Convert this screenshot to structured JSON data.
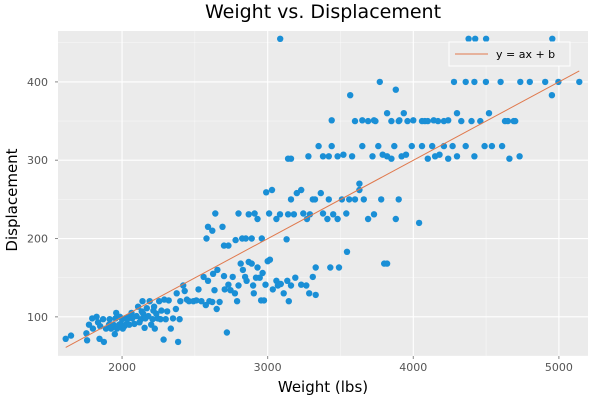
{
  "chart_data": {
    "type": "scatter",
    "title": "Weight vs. Displacement",
    "xlabel": "Weight (lbs)",
    "ylabel": "Displacement",
    "xlim": [
      1560,
      5200
    ],
    "ylim": [
      50,
      465
    ],
    "xticks": [
      2000,
      3000,
      4000,
      5000
    ],
    "yticks": [
      100,
      200,
      300,
      400
    ],
    "grid": true,
    "legend_position": "top-right",
    "colors": {
      "points": "#1a8fd6",
      "fit_line": "#e0794d",
      "panel": "#ebebeb",
      "grid": "#ffffff"
    },
    "series": [
      {
        "type": "scatter",
        "points": [
          [
            1613,
            72
          ],
          [
            1649,
            76
          ],
          [
            1755,
            79
          ],
          [
            1760,
            70
          ],
          [
            1773,
            90
          ],
          [
            1795,
            98
          ],
          [
            1800,
            85
          ],
          [
            1825,
            100
          ],
          [
            1835,
            93
          ],
          [
            1845,
            72
          ],
          [
            1850,
            88
          ],
          [
            1870,
            97
          ],
          [
            1875,
            68
          ],
          [
            1890,
            85
          ],
          [
            1910,
            90
          ],
          [
            1915,
            97
          ],
          [
            1925,
            85
          ],
          [
            1940,
            90
          ],
          [
            1950,
            78
          ],
          [
            1955,
            98
          ],
          [
            1960,
            105
          ],
          [
            1965,
            85
          ],
          [
            1980,
            90
          ],
          [
            1985,
            100
          ],
          [
            1990,
            91
          ],
          [
            2000,
            97
          ],
          [
            2005,
            85
          ],
          [
            2015,
            88
          ],
          [
            2020,
            98
          ],
          [
            2025,
            90
          ],
          [
            2035,
            97
          ],
          [
            2045,
            100
          ],
          [
            2050,
            90
          ],
          [
            2065,
            105
          ],
          [
            2070,
            98
          ],
          [
            2085,
            91
          ],
          [
            2100,
            101
          ],
          [
            2110,
            113
          ],
          [
            2120,
            93
          ],
          [
            2130,
            97
          ],
          [
            2135,
            107
          ],
          [
            2140,
            120
          ],
          [
            2145,
            104
          ],
          [
            2155,
            86
          ],
          [
            2160,
            98
          ],
          [
            2170,
            111
          ],
          [
            2180,
            101
          ],
          [
            2190,
            120
          ],
          [
            2200,
            90
          ],
          [
            2210,
            97
          ],
          [
            2215,
            108
          ],
          [
            2220,
            113
          ],
          [
            2225,
            85
          ],
          [
            2235,
            104
          ],
          [
            2245,
            98
          ],
          [
            2255,
            120
          ],
          [
            2264,
            97
          ],
          [
            2270,
            108
          ],
          [
            2285,
            71
          ],
          [
            2290,
            122
          ],
          [
            2300,
            97
          ],
          [
            2310,
            107
          ],
          [
            2320,
            121
          ],
          [
            2335,
            85
          ],
          [
            2350,
            98
          ],
          [
            2370,
            110
          ],
          [
            2375,
            130
          ],
          [
            2385,
            68
          ],
          [
            2395,
            97
          ],
          [
            2400,
            120
          ],
          [
            2420,
            140
          ],
          [
            2430,
            133
          ],
          [
            2445,
            122
          ],
          [
            2460,
            120
          ],
          [
            2490,
            120
          ],
          [
            2510,
            121
          ],
          [
            2525,
            135
          ],
          [
            2545,
            120
          ],
          [
            2560,
            151
          ],
          [
            2575,
            115
          ],
          [
            2590,
            146
          ],
          [
            2600,
            120
          ],
          [
            2620,
            119
          ],
          [
            2625,
            155
          ],
          [
            2635,
            134
          ],
          [
            2650,
            110
          ],
          [
            2655,
            160
          ],
          [
            2670,
            119
          ],
          [
            2700,
            152
          ],
          [
            2705,
            135
          ],
          [
            2720,
            80
          ],
          [
            2730,
            141
          ],
          [
            2745,
            134
          ],
          [
            2760,
            151
          ],
          [
            2775,
            130
          ],
          [
            2790,
            120
          ],
          [
            2800,
            140
          ],
          [
            2815,
            168
          ],
          [
            2830,
            160
          ],
          [
            2845,
            151
          ],
          [
            2855,
            146
          ],
          [
            2870,
            170
          ],
          [
            2890,
            168
          ],
          [
            2900,
            140
          ],
          [
            2905,
            130
          ],
          [
            2920,
            150
          ],
          [
            2930,
            163
          ],
          [
            2945,
            150
          ],
          [
            2955,
            121
          ],
          [
            2965,
            156
          ],
          [
            2975,
            121
          ],
          [
            2985,
            141
          ],
          [
            3000,
            171
          ],
          [
            3015,
            173
          ],
          [
            3035,
            135
          ],
          [
            3060,
            146
          ],
          [
            3070,
            140
          ],
          [
            3090,
            142
          ],
          [
            3110,
            130
          ],
          [
            3135,
            146
          ],
          [
            3145,
            120
          ],
          [
            3160,
            140
          ],
          [
            3190,
            150
          ],
          [
            3230,
            141
          ],
          [
            3265,
            140
          ],
          [
            3285,
            130
          ],
          [
            3310,
            151
          ],
          [
            3330,
            163
          ],
          [
            3490,
            163
          ],
          [
            3545,
            183
          ],
          [
            2580,
            200
          ],
          [
            2590,
            215
          ],
          [
            2620,
            210
          ],
          [
            2640,
            232
          ],
          [
            2690,
            215
          ],
          [
            2700,
            191
          ],
          [
            2730,
            191
          ],
          [
            2780,
            198
          ],
          [
            2800,
            232
          ],
          [
            2825,
            200
          ],
          [
            2850,
            200
          ],
          [
            2870,
            231
          ],
          [
            2890,
            200
          ],
          [
            2910,
            232
          ],
          [
            2930,
            225
          ],
          [
            2960,
            200
          ],
          [
            2990,
            259
          ],
          [
            3010,
            232
          ],
          [
            3030,
            262
          ],
          [
            3060,
            225
          ],
          [
            3085,
            231
          ],
          [
            3130,
            199
          ],
          [
            3140,
            231
          ],
          [
            3160,
            250
          ],
          [
            3180,
            231
          ],
          [
            3200,
            258
          ],
          [
            3230,
            262
          ],
          [
            3245,
            232
          ],
          [
            3270,
            225
          ],
          [
            3290,
            231
          ],
          [
            3310,
            250
          ],
          [
            3325,
            250
          ],
          [
            3365,
            258
          ],
          [
            3380,
            232
          ],
          [
            3410,
            225
          ],
          [
            3420,
            250
          ],
          [
            3450,
            231
          ],
          [
            3480,
            225
          ],
          [
            3510,
            250
          ],
          [
            3540,
            232
          ],
          [
            3560,
            250
          ],
          [
            3630,
            262
          ],
          [
            3660,
            250
          ],
          [
            3690,
            225
          ],
          [
            3730,
            231
          ],
          [
            3780,
            250
          ],
          [
            3880,
            225
          ],
          [
            3900,
            250
          ],
          [
            3140,
            302
          ],
          [
            3160,
            302
          ],
          [
            3280,
            305
          ],
          [
            3350,
            318
          ],
          [
            3380,
            305
          ],
          [
            3420,
            305
          ],
          [
            3440,
            318
          ],
          [
            3480,
            305
          ],
          [
            3520,
            307
          ],
          [
            3580,
            305
          ],
          [
            3600,
            250
          ],
          [
            3630,
            270
          ],
          [
            3650,
            318
          ],
          [
            3720,
            305
          ],
          [
            3760,
            318
          ],
          [
            3790,
            307
          ],
          [
            3820,
            305
          ],
          [
            3850,
            302
          ],
          [
            3870,
            318
          ],
          [
            3905,
            351
          ],
          [
            3920,
            305
          ],
          [
            3950,
            307
          ],
          [
            3990,
            318
          ],
          [
            4040,
            220
          ],
          [
            4060,
            318
          ],
          [
            4080,
            350
          ],
          [
            4100,
            302
          ],
          [
            4130,
            318
          ],
          [
            4150,
            305
          ],
          [
            4180,
            307
          ],
          [
            4210,
            318
          ],
          [
            4240,
            302
          ],
          [
            4270,
            318
          ],
          [
            4300,
            305
          ],
          [
            4360,
            318
          ],
          [
            4420,
            305
          ],
          [
            4490,
            318
          ],
          [
            4540,
            318
          ],
          [
            4610,
            318
          ],
          [
            4630,
            350
          ],
          [
            4660,
            302
          ],
          [
            4700,
            350
          ],
          [
            4730,
            305
          ],
          [
            3440,
            351
          ],
          [
            3600,
            350
          ],
          [
            3650,
            351
          ],
          [
            3690,
            350
          ],
          [
            3730,
            351
          ],
          [
            3740,
            350
          ],
          [
            3770,
            400
          ],
          [
            3820,
            360
          ],
          [
            3850,
            350
          ],
          [
            3880,
            390
          ],
          [
            3900,
            350
          ],
          [
            3935,
            360
          ],
          [
            3960,
            350
          ],
          [
            4000,
            351
          ],
          [
            4060,
            350
          ],
          [
            4100,
            350
          ],
          [
            4140,
            351
          ],
          [
            4170,
            350
          ],
          [
            4210,
            350
          ],
          [
            4240,
            351
          ],
          [
            4280,
            400
          ],
          [
            4300,
            360
          ],
          [
            4330,
            350
          ],
          [
            4360,
            400
          ],
          [
            4400,
            350
          ],
          [
            4420,
            400
          ],
          [
            4460,
            350
          ],
          [
            4499,
            400
          ],
          [
            4520,
            360
          ],
          [
            4600,
            400
          ],
          [
            4650,
            350
          ],
          [
            4690,
            350
          ],
          [
            4735,
            400
          ],
          [
            4800,
            400
          ],
          [
            4906,
            400
          ],
          [
            4952,
            383
          ],
          [
            4955,
            455
          ],
          [
            4997,
            400
          ],
          [
            5140,
            400
          ],
          [
            3086,
            455
          ],
          [
            3567,
            383
          ],
          [
            4380,
            455
          ],
          [
            4425,
            455
          ],
          [
            4500,
            455
          ],
          [
            3800,
            168
          ],
          [
            3820,
            168
          ],
          [
            3330,
            128
          ],
          [
            3430,
            163
          ]
        ]
      },
      {
        "type": "line",
        "name": "y = ax + b",
        "points": [
          [
            1613,
            61
          ],
          [
            5140,
            414
          ]
        ]
      }
    ]
  }
}
